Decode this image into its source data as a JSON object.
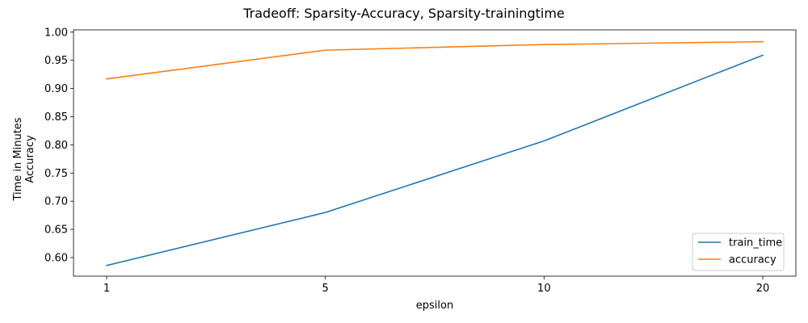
{
  "chart_data": {
    "type": "line",
    "title": "Tradeoff: Sparsity-Accuracy, Sparsity-trainingtime",
    "xlabel": "epsilon",
    "ylabel_lines": [
      "Time in Minutes",
      "Accuracy"
    ],
    "categories": [
      "1",
      "5",
      "10",
      "20"
    ],
    "yticks": [
      "0.60",
      "0.65",
      "0.70",
      "0.75",
      "0.80",
      "0.85",
      "0.90",
      "0.95",
      "1.00"
    ],
    "ylim": [
      0.567,
      1.004
    ],
    "grid": false,
    "legend_position": "lower-right",
    "series": [
      {
        "name": "train_time",
        "color": "#1f77b4",
        "values": [
          0.586,
          0.68,
          0.807,
          0.959
        ]
      },
      {
        "name": "accuracy",
        "color": "#ff7f0e",
        "values": [
          0.917,
          0.968,
          0.978,
          0.983
        ]
      }
    ]
  }
}
